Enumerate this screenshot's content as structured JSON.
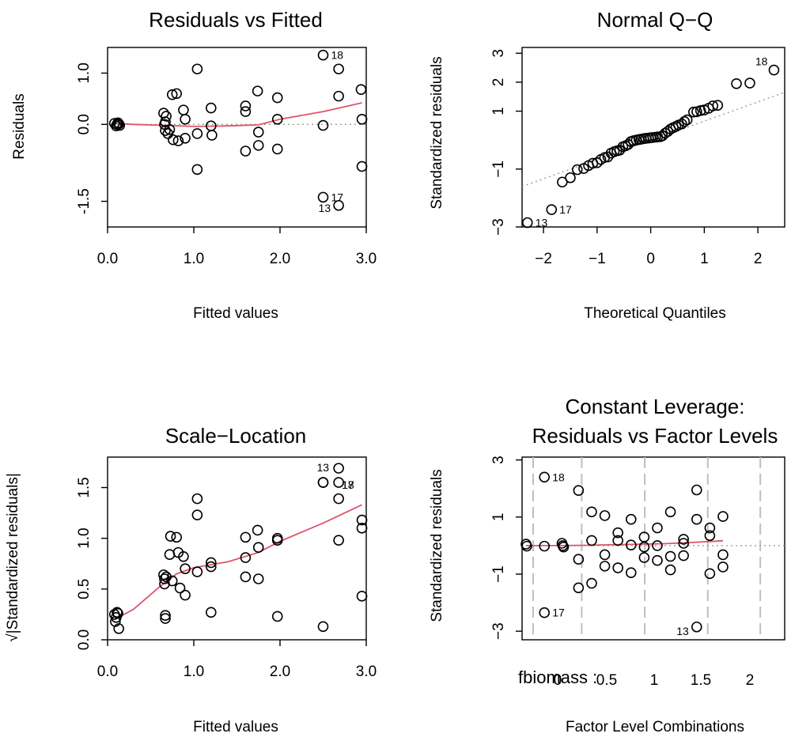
{
  "colors": {
    "smooth": "#DF536B",
    "reference": "#9A9A9A",
    "level_lines": "#BEBEBE",
    "points": "#000000"
  },
  "chart_data": [
    {
      "type": "scatter",
      "title": "Residuals vs Fitted",
      "xlabel": "Fitted values",
      "ylabel": "Residuals",
      "xlim": [
        0,
        3.0
      ],
      "ylim": [
        -2.0,
        1.5
      ],
      "xticks": [
        "0.0",
        "1.0",
        "2.0",
        "3.0"
      ],
      "yticks": [
        "-1.5",
        "0.0",
        "1.0"
      ],
      "points": [
        [
          0.08,
          0.02
        ],
        [
          0.1,
          -0.03
        ],
        [
          0.11,
          0.0
        ],
        [
          0.12,
          0.03
        ],
        [
          0.13,
          0.01
        ],
        [
          0.14,
          -0.02
        ],
        [
          0.65,
          0.22
        ],
        [
          0.66,
          0.0
        ],
        [
          0.67,
          -0.12
        ],
        [
          0.67,
          0.05
        ],
        [
          0.68,
          0.16
        ],
        [
          0.7,
          -0.18
        ],
        [
          0.72,
          -0.1
        ],
        [
          0.75,
          0.58
        ],
        [
          0.76,
          -0.3
        ],
        [
          0.8,
          0.6
        ],
        [
          0.82,
          -0.32
        ],
        [
          0.88,
          0.28
        ],
        [
          0.9,
          0.1
        ],
        [
          0.9,
          -0.27
        ],
        [
          1.04,
          1.08
        ],
        [
          1.04,
          -0.18
        ],
        [
          1.04,
          -0.88
        ],
        [
          1.2,
          0.32
        ],
        [
          1.2,
          -0.03
        ],
        [
          1.21,
          -0.21
        ],
        [
          1.6,
          0.36
        ],
        [
          1.6,
          0.25
        ],
        [
          1.6,
          -0.52
        ],
        [
          1.74,
          0.65
        ],
        [
          1.75,
          -0.15
        ],
        [
          1.75,
          -0.41
        ],
        [
          1.97,
          0.52
        ],
        [
          1.97,
          0.1
        ],
        [
          1.97,
          -0.48
        ],
        [
          2.5,
          1.35
        ],
        [
          2.5,
          -1.42
        ],
        [
          2.5,
          -0.02
        ],
        [
          2.68,
          1.08
        ],
        [
          2.68,
          0.55
        ],
        [
          2.68,
          -1.58
        ],
        [
          2.94,
          0.68
        ],
        [
          2.95,
          0.1
        ],
        [
          2.95,
          -0.82
        ]
      ],
      "labeled_points": [
        {
          "label": "18",
          "x": 2.5,
          "y": 1.35
        },
        {
          "label": "17",
          "x": 2.5,
          "y": -1.42
        },
        {
          "label": "13",
          "x": 2.68,
          "y": -1.58
        }
      ],
      "smooth": [
        [
          0.08,
          0.02
        ],
        [
          0.3,
          0.0
        ],
        [
          0.7,
          -0.02
        ],
        [
          1.0,
          -0.04
        ],
        [
          1.4,
          -0.03
        ],
        [
          1.75,
          -0.01
        ],
        [
          2.0,
          0.1
        ],
        [
          2.5,
          0.25
        ],
        [
          2.95,
          0.42
        ]
      ],
      "reference_line": {
        "y": 0
      }
    },
    {
      "type": "scatter",
      "title": "Normal Q−Q",
      "xlabel": "Theoretical Quantiles",
      "ylabel": "Standardized residuals",
      "xlim": [
        -2.4,
        2.5
      ],
      "ylim": [
        -3.0,
        3.2
      ],
      "xticks": [
        "−2",
        "−1",
        "0",
        "1",
        "2"
      ],
      "yticks": [
        "−3",
        "−1",
        "1",
        "2",
        "3"
      ],
      "points": [
        [
          -2.3,
          -2.85
        ],
        [
          -1.85,
          -2.4
        ],
        [
          -1.65,
          -1.45
        ],
        [
          -1.5,
          -1.3
        ],
        [
          -1.37,
          -1.02
        ],
        [
          -1.25,
          -0.98
        ],
        [
          -1.16,
          -0.88
        ],
        [
          -1.08,
          -0.8
        ],
        [
          -1.0,
          -0.78
        ],
        [
          -0.93,
          -0.67
        ],
        [
          -0.86,
          -0.6
        ],
        [
          -0.8,
          -0.58
        ],
        [
          -0.74,
          -0.45
        ],
        [
          -0.68,
          -0.4
        ],
        [
          -0.63,
          -0.37
        ],
        [
          -0.58,
          -0.35
        ],
        [
          -0.52,
          -0.23
        ],
        [
          -0.47,
          -0.2
        ],
        [
          -0.42,
          -0.15
        ],
        [
          -0.37,
          -0.05
        ],
        [
          -0.32,
          -0.02
        ],
        [
          -0.27,
          0.0
        ],
        [
          -0.22,
          0.02
        ],
        [
          -0.18,
          0.03
        ],
        [
          -0.13,
          0.05
        ],
        [
          -0.09,
          0.06
        ],
        [
          -0.04,
          0.07
        ],
        [
          0.0,
          0.08
        ],
        [
          0.04,
          0.09
        ],
        [
          0.09,
          0.1
        ],
        [
          0.13,
          0.11
        ],
        [
          0.18,
          0.12
        ],
        [
          0.22,
          0.15
        ],
        [
          0.27,
          0.24
        ],
        [
          0.32,
          0.3
        ],
        [
          0.37,
          0.38
        ],
        [
          0.42,
          0.43
        ],
        [
          0.47,
          0.47
        ],
        [
          0.52,
          0.52
        ],
        [
          0.58,
          0.56
        ],
        [
          0.63,
          0.64
        ],
        [
          0.68,
          0.7
        ],
        [
          0.8,
          0.97
        ],
        [
          0.86,
          0.98
        ],
        [
          0.93,
          1.02
        ],
        [
          1.0,
          1.04
        ],
        [
          1.08,
          1.1
        ],
        [
          1.16,
          1.18
        ],
        [
          1.25,
          1.2
        ],
        [
          1.6,
          1.95
        ],
        [
          1.85,
          1.97
        ],
        [
          2.3,
          2.42
        ]
      ],
      "labeled_points": [
        {
          "label": "18",
          "x": 2.3,
          "y": 2.42
        },
        {
          "label": "17",
          "x": -1.85,
          "y": -2.4
        },
        {
          "label": "13",
          "x": -2.3,
          "y": -2.85
        }
      ],
      "reference_line": {
        "from": [
          -2.4,
          -1.6
        ],
        "to": [
          2.5,
          1.65
        ]
      }
    },
    {
      "type": "scatter",
      "title": "Scale−Location",
      "xlabel": "Fitted values",
      "ylabel": "√|Standardized residuals|",
      "xlim": [
        0,
        3.0
      ],
      "ylim": [
        0,
        1.8
      ],
      "xticks": [
        "0.0",
        "1.0",
        "2.0",
        "3.0"
      ],
      "yticks": [
        "0.0",
        "0.5",
        "1.0",
        "1.5"
      ],
      "points": [
        [
          0.08,
          0.25
        ],
        [
          0.09,
          0.18
        ],
        [
          0.1,
          0.22
        ],
        [
          0.11,
          0.27
        ],
        [
          0.12,
          0.26
        ],
        [
          0.13,
          0.11
        ],
        [
          0.65,
          0.64
        ],
        [
          0.66,
          0.6
        ],
        [
          0.66,
          0.55
        ],
        [
          0.67,
          0.24
        ],
        [
          0.67,
          0.21
        ],
        [
          0.68,
          0.62
        ],
        [
          0.72,
          0.84
        ],
        [
          0.73,
          1.02
        ],
        [
          0.75,
          0.58
        ],
        [
          0.8,
          1.01
        ],
        [
          0.82,
          0.86
        ],
        [
          0.84,
          0.51
        ],
        [
          0.88,
          0.82
        ],
        [
          0.9,
          0.7
        ],
        [
          0.9,
          0.44
        ],
        [
          1.04,
          1.39
        ],
        [
          1.04,
          1.23
        ],
        [
          1.04,
          0.67
        ],
        [
          1.2,
          0.76
        ],
        [
          1.2,
          0.72
        ],
        [
          1.2,
          0.27
        ],
        [
          1.6,
          1.01
        ],
        [
          1.6,
          0.81
        ],
        [
          1.6,
          0.62
        ],
        [
          1.74,
          1.08
        ],
        [
          1.75,
          0.91
        ],
        [
          1.75,
          0.6
        ],
        [
          1.97,
          1.0
        ],
        [
          1.97,
          0.98
        ],
        [
          1.97,
          0.23
        ],
        [
          2.5,
          1.55
        ],
        [
          2.5,
          1.55
        ],
        [
          2.5,
          0.13
        ],
        [
          2.68,
          1.69
        ],
        [
          2.68,
          1.55
        ],
        [
          2.68,
          1.39
        ],
        [
          2.68,
          0.98
        ],
        [
          2.95,
          1.18
        ],
        [
          2.95,
          1.1
        ],
        [
          2.95,
          0.43
        ]
      ],
      "labeled_points": [
        {
          "label": "13",
          "x": 2.5,
          "y": 1.55
        },
        {
          "label": "18",
          "x": 2.68,
          "y": 1.55
        },
        {
          "label": "17",
          "x": 2.68,
          "y": 1.55
        }
      ],
      "smooth": [
        [
          0.08,
          0.2
        ],
        [
          0.3,
          0.3
        ],
        [
          0.6,
          0.52
        ],
        [
          0.8,
          0.65
        ],
        [
          1.0,
          0.71
        ],
        [
          1.4,
          0.77
        ],
        [
          1.75,
          0.86
        ],
        [
          2.0,
          0.97
        ],
        [
          2.5,
          1.15
        ],
        [
          2.95,
          1.33
        ]
      ]
    },
    {
      "type": "scatter",
      "title": "Constant Leverage:\nResiduals vs Factor Levels",
      "xlabel": "Factor Level Combinations",
      "ylabel": "Standardized residuals",
      "factor_label": "fbiomass :",
      "factor_levels": [
        "0",
        "0.5",
        "1",
        "1.5",
        "2"
      ],
      "xlim": [
        0,
        10
      ],
      "ylim": [
        -3.3,
        3.1
      ],
      "yticks": [
        "−3",
        "−1",
        "1",
        "3"
      ],
      "points": [
        [
          0.15,
          0.05
        ],
        [
          0.18,
          -0.02
        ],
        [
          0.85,
          2.4
        ],
        [
          0.85,
          -0.02
        ],
        [
          0.85,
          -2.35
        ],
        [
          1.52,
          0.08
        ],
        [
          1.55,
          0.0
        ],
        [
          1.58,
          -0.05
        ],
        [
          2.15,
          1.93
        ],
        [
          2.15,
          -0.48
        ],
        [
          2.15,
          -1.48
        ],
        [
          2.65,
          1.18
        ],
        [
          2.65,
          0.18
        ],
        [
          2.65,
          -1.32
        ],
        [
          3.15,
          1.05
        ],
        [
          3.15,
          -0.32
        ],
        [
          3.15,
          -0.72
        ],
        [
          3.65,
          0.45
        ],
        [
          3.65,
          0.18
        ],
        [
          3.65,
          -0.78
        ],
        [
          4.15,
          0.92
        ],
        [
          4.15,
          0.02
        ],
        [
          4.15,
          -0.95
        ],
        [
          4.65,
          0.3
        ],
        [
          4.65,
          -0.05
        ],
        [
          4.65,
          -0.42
        ],
        [
          5.15,
          0.62
        ],
        [
          5.15,
          0.0
        ],
        [
          5.15,
          -0.52
        ],
        [
          5.65,
          1.18
        ],
        [
          5.65,
          -0.38
        ],
        [
          5.65,
          -0.85
        ],
        [
          6.15,
          0.22
        ],
        [
          6.15,
          0.08
        ],
        [
          6.15,
          -0.35
        ],
        [
          6.65,
          1.95
        ],
        [
          6.65,
          0.92
        ],
        [
          6.65,
          -2.85
        ],
        [
          7.15,
          0.62
        ],
        [
          7.15,
          0.35
        ],
        [
          7.15,
          -0.98
        ],
        [
          7.65,
          1.02
        ],
        [
          7.65,
          -0.32
        ],
        [
          7.65,
          -0.75
        ]
      ],
      "labeled_points": [
        {
          "label": "18",
          "x": 0.85,
          "y": 2.4
        },
        {
          "label": "17",
          "x": 0.85,
          "y": -2.35
        },
        {
          "label": "13",
          "x": 6.65,
          "y": -2.85
        }
      ],
      "smooth": [
        [
          0.15,
          0.0
        ],
        [
          1.5,
          0.0
        ],
        [
          2.5,
          0.01
        ],
        [
          3.5,
          0.03
        ],
        [
          4.5,
          0.05
        ],
        [
          5.5,
          0.07
        ],
        [
          6.5,
          0.11
        ],
        [
          7.65,
          0.17
        ]
      ],
      "reference_line": {
        "y": 0
      },
      "level_lines": [
        0.0,
        1.85,
        4.25,
        6.65,
        8.65
      ]
    }
  ]
}
